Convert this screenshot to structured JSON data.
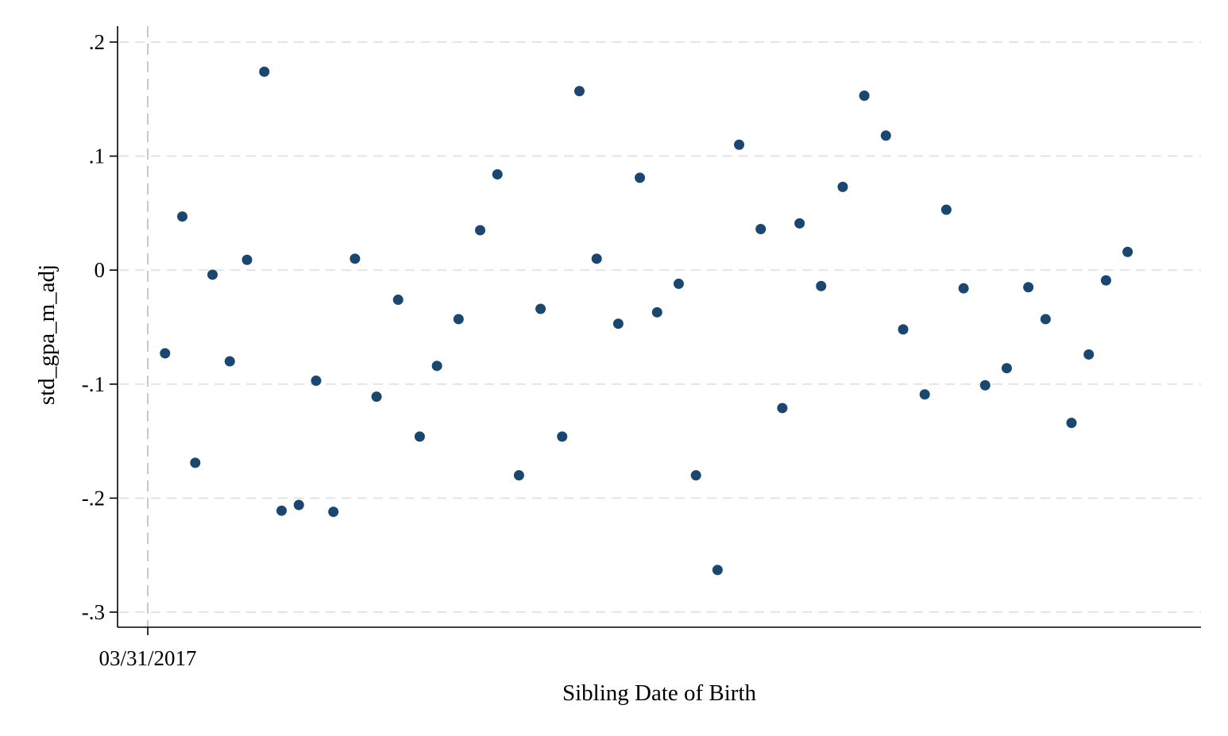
{
  "chart_data": {
    "type": "scatter",
    "title": "",
    "xlabel": "Sibling Date of Birth",
    "ylabel": "std_gpa_m_adj",
    "ylim": [
      -0.3,
      0.2
    ],
    "yticks": [
      0.2,
      0.1,
      0,
      -0.1,
      -0.2,
      -0.3
    ],
    "ytick_labels": [
      ".2",
      ".1",
      "0",
      "-.1",
      "-.2",
      "-.3"
    ],
    "xticks": [
      "2017-03-31"
    ],
    "xtick_labels": [
      "03/31/2017"
    ],
    "xlim": [
      "2017-03-24",
      "2017-11-30"
    ],
    "reference_line": {
      "x": "2017-03-31",
      "style": "dashed",
      "color": "#c8c8c8"
    },
    "grid": true,
    "marker_color": "#1a476f",
    "points": [
      {
        "x": "2017-04-04",
        "y": -0.073
      },
      {
        "x": "2017-04-08",
        "y": 0.047
      },
      {
        "x": "2017-04-11",
        "y": -0.169
      },
      {
        "x": "2017-04-15",
        "y": -0.004
      },
      {
        "x": "2017-04-19",
        "y": -0.08
      },
      {
        "x": "2017-04-23",
        "y": 0.009
      },
      {
        "x": "2017-04-27",
        "y": 0.174
      },
      {
        "x": "2017-05-01",
        "y": -0.211
      },
      {
        "x": "2017-05-05",
        "y": -0.206
      },
      {
        "x": "2017-05-09",
        "y": -0.097
      },
      {
        "x": "2017-05-13",
        "y": -0.212
      },
      {
        "x": "2017-05-18",
        "y": 0.01
      },
      {
        "x": "2017-05-23",
        "y": -0.111
      },
      {
        "x": "2017-05-28",
        "y": -0.026
      },
      {
        "x": "2017-06-02",
        "y": -0.146
      },
      {
        "x": "2017-06-06",
        "y": -0.084
      },
      {
        "x": "2017-06-11",
        "y": -0.043
      },
      {
        "x": "2017-06-16",
        "y": 0.035
      },
      {
        "x": "2017-06-20",
        "y": 0.084
      },
      {
        "x": "2017-06-25",
        "y": -0.18
      },
      {
        "x": "2017-06-30",
        "y": -0.034
      },
      {
        "x": "2017-07-05",
        "y": -0.146
      },
      {
        "x": "2017-07-09",
        "y": 0.157
      },
      {
        "x": "2017-07-13",
        "y": 0.01
      },
      {
        "x": "2017-07-18",
        "y": -0.047
      },
      {
        "x": "2017-07-23",
        "y": 0.081
      },
      {
        "x": "2017-07-27",
        "y": -0.037
      },
      {
        "x": "2017-08-01",
        "y": -0.012
      },
      {
        "x": "2017-08-05",
        "y": -0.18
      },
      {
        "x": "2017-08-10",
        "y": -0.263
      },
      {
        "x": "2017-08-15",
        "y": 0.11
      },
      {
        "x": "2017-08-20",
        "y": 0.036
      },
      {
        "x": "2017-08-25",
        "y": -0.121
      },
      {
        "x": "2017-08-29",
        "y": 0.041
      },
      {
        "x": "2017-09-03",
        "y": -0.014
      },
      {
        "x": "2017-09-08",
        "y": 0.073
      },
      {
        "x": "2017-09-13",
        "y": 0.153
      },
      {
        "x": "2017-09-18",
        "y": 0.118
      },
      {
        "x": "2017-09-22",
        "y": -0.052
      },
      {
        "x": "2017-09-27",
        "y": -0.109
      },
      {
        "x": "2017-10-02",
        "y": 0.053
      },
      {
        "x": "2017-10-06",
        "y": -0.016
      },
      {
        "x": "2017-10-11",
        "y": -0.101
      },
      {
        "x": "2017-10-16",
        "y": -0.086
      },
      {
        "x": "2017-10-21",
        "y": -0.015
      },
      {
        "x": "2017-10-25",
        "y": -0.043
      },
      {
        "x": "2017-10-31",
        "y": -0.134
      },
      {
        "x": "2017-11-04",
        "y": -0.074
      },
      {
        "x": "2017-11-08",
        "y": -0.009
      },
      {
        "x": "2017-11-13",
        "y": 0.016
      }
    ]
  }
}
